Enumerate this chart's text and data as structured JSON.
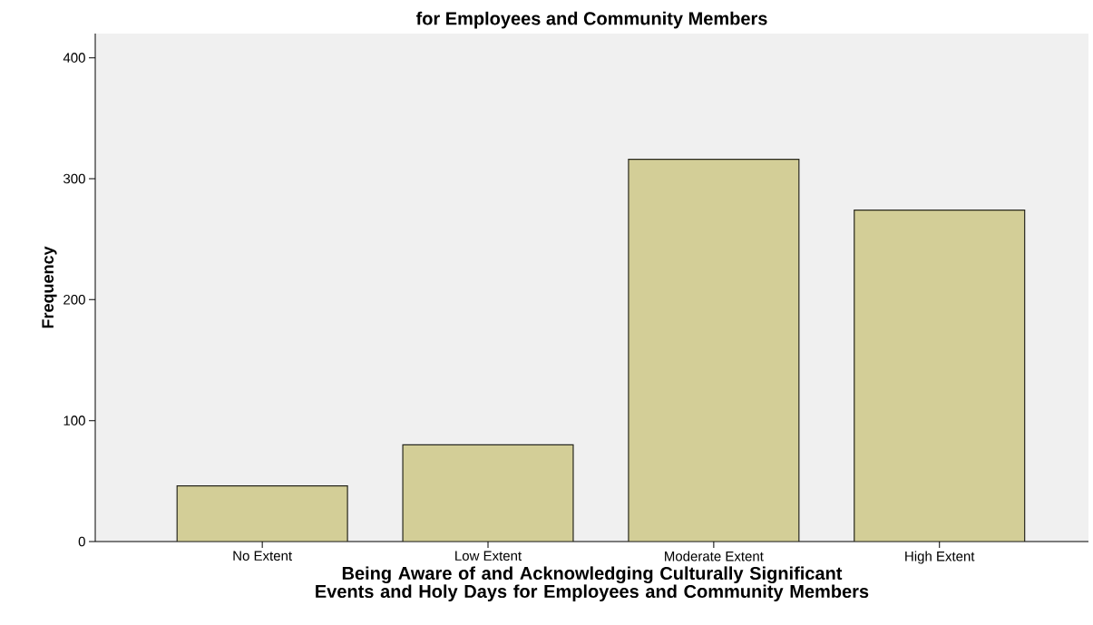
{
  "chart_data": {
    "type": "bar",
    "title": "for Employees and Community Members",
    "categories": [
      "No Extent",
      "Low Extent",
      "Moderate Extent",
      "High Extent"
    ],
    "values": [
      46,
      80,
      316,
      274
    ],
    "color": "#d3ce97",
    "ylim": [
      0,
      420
    ],
    "yticks": [
      0,
      100,
      200,
      300,
      400
    ],
    "grid": false,
    "xlabel": "Being Aware of and Acknowledging Culturally Significant Events and Holy Days for Employees and Community Members",
    "ylabel": "Frequency"
  }
}
